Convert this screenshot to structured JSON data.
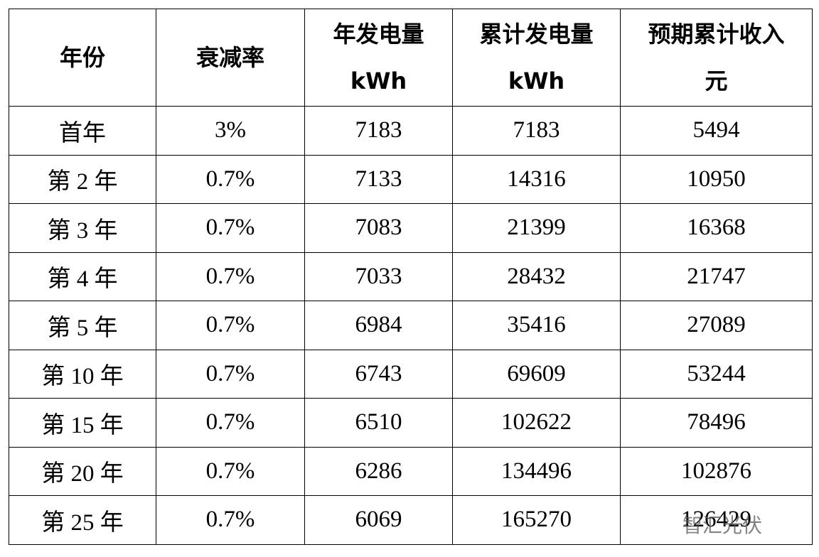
{
  "table": {
    "header": [
      [
        "年份"
      ],
      [
        "衰减率"
      ],
      [
        "年发电量",
        "kWh"
      ],
      [
        "累计发电量",
        "kWh"
      ],
      [
        "预期累计收入",
        "元"
      ]
    ],
    "rows": [
      [
        "首年",
        "3%",
        "7183",
        "7183",
        "5494"
      ],
      [
        "第 2 年",
        "0.7%",
        "7133",
        "14316",
        "10950"
      ],
      [
        "第 3 年",
        "0.7%",
        "7083",
        "21399",
        "16368"
      ],
      [
        "第 4 年",
        "0.7%",
        "7033",
        "28432",
        "21747"
      ],
      [
        "第 5 年",
        "0.7%",
        "6984",
        "35416",
        "27089"
      ],
      [
        "第 10 年",
        "0.7%",
        "6743",
        "69609",
        "53244"
      ],
      [
        "第 15 年",
        "0.7%",
        "6510",
        "102622",
        "78496"
      ],
      [
        "第 20 年",
        "0.7%",
        "6286",
        "134496",
        "102876"
      ],
      [
        "第 25 年",
        "0.7%",
        "6069",
        "165270",
        "126429"
      ]
    ]
  },
  "watermark": "智汇光伏"
}
